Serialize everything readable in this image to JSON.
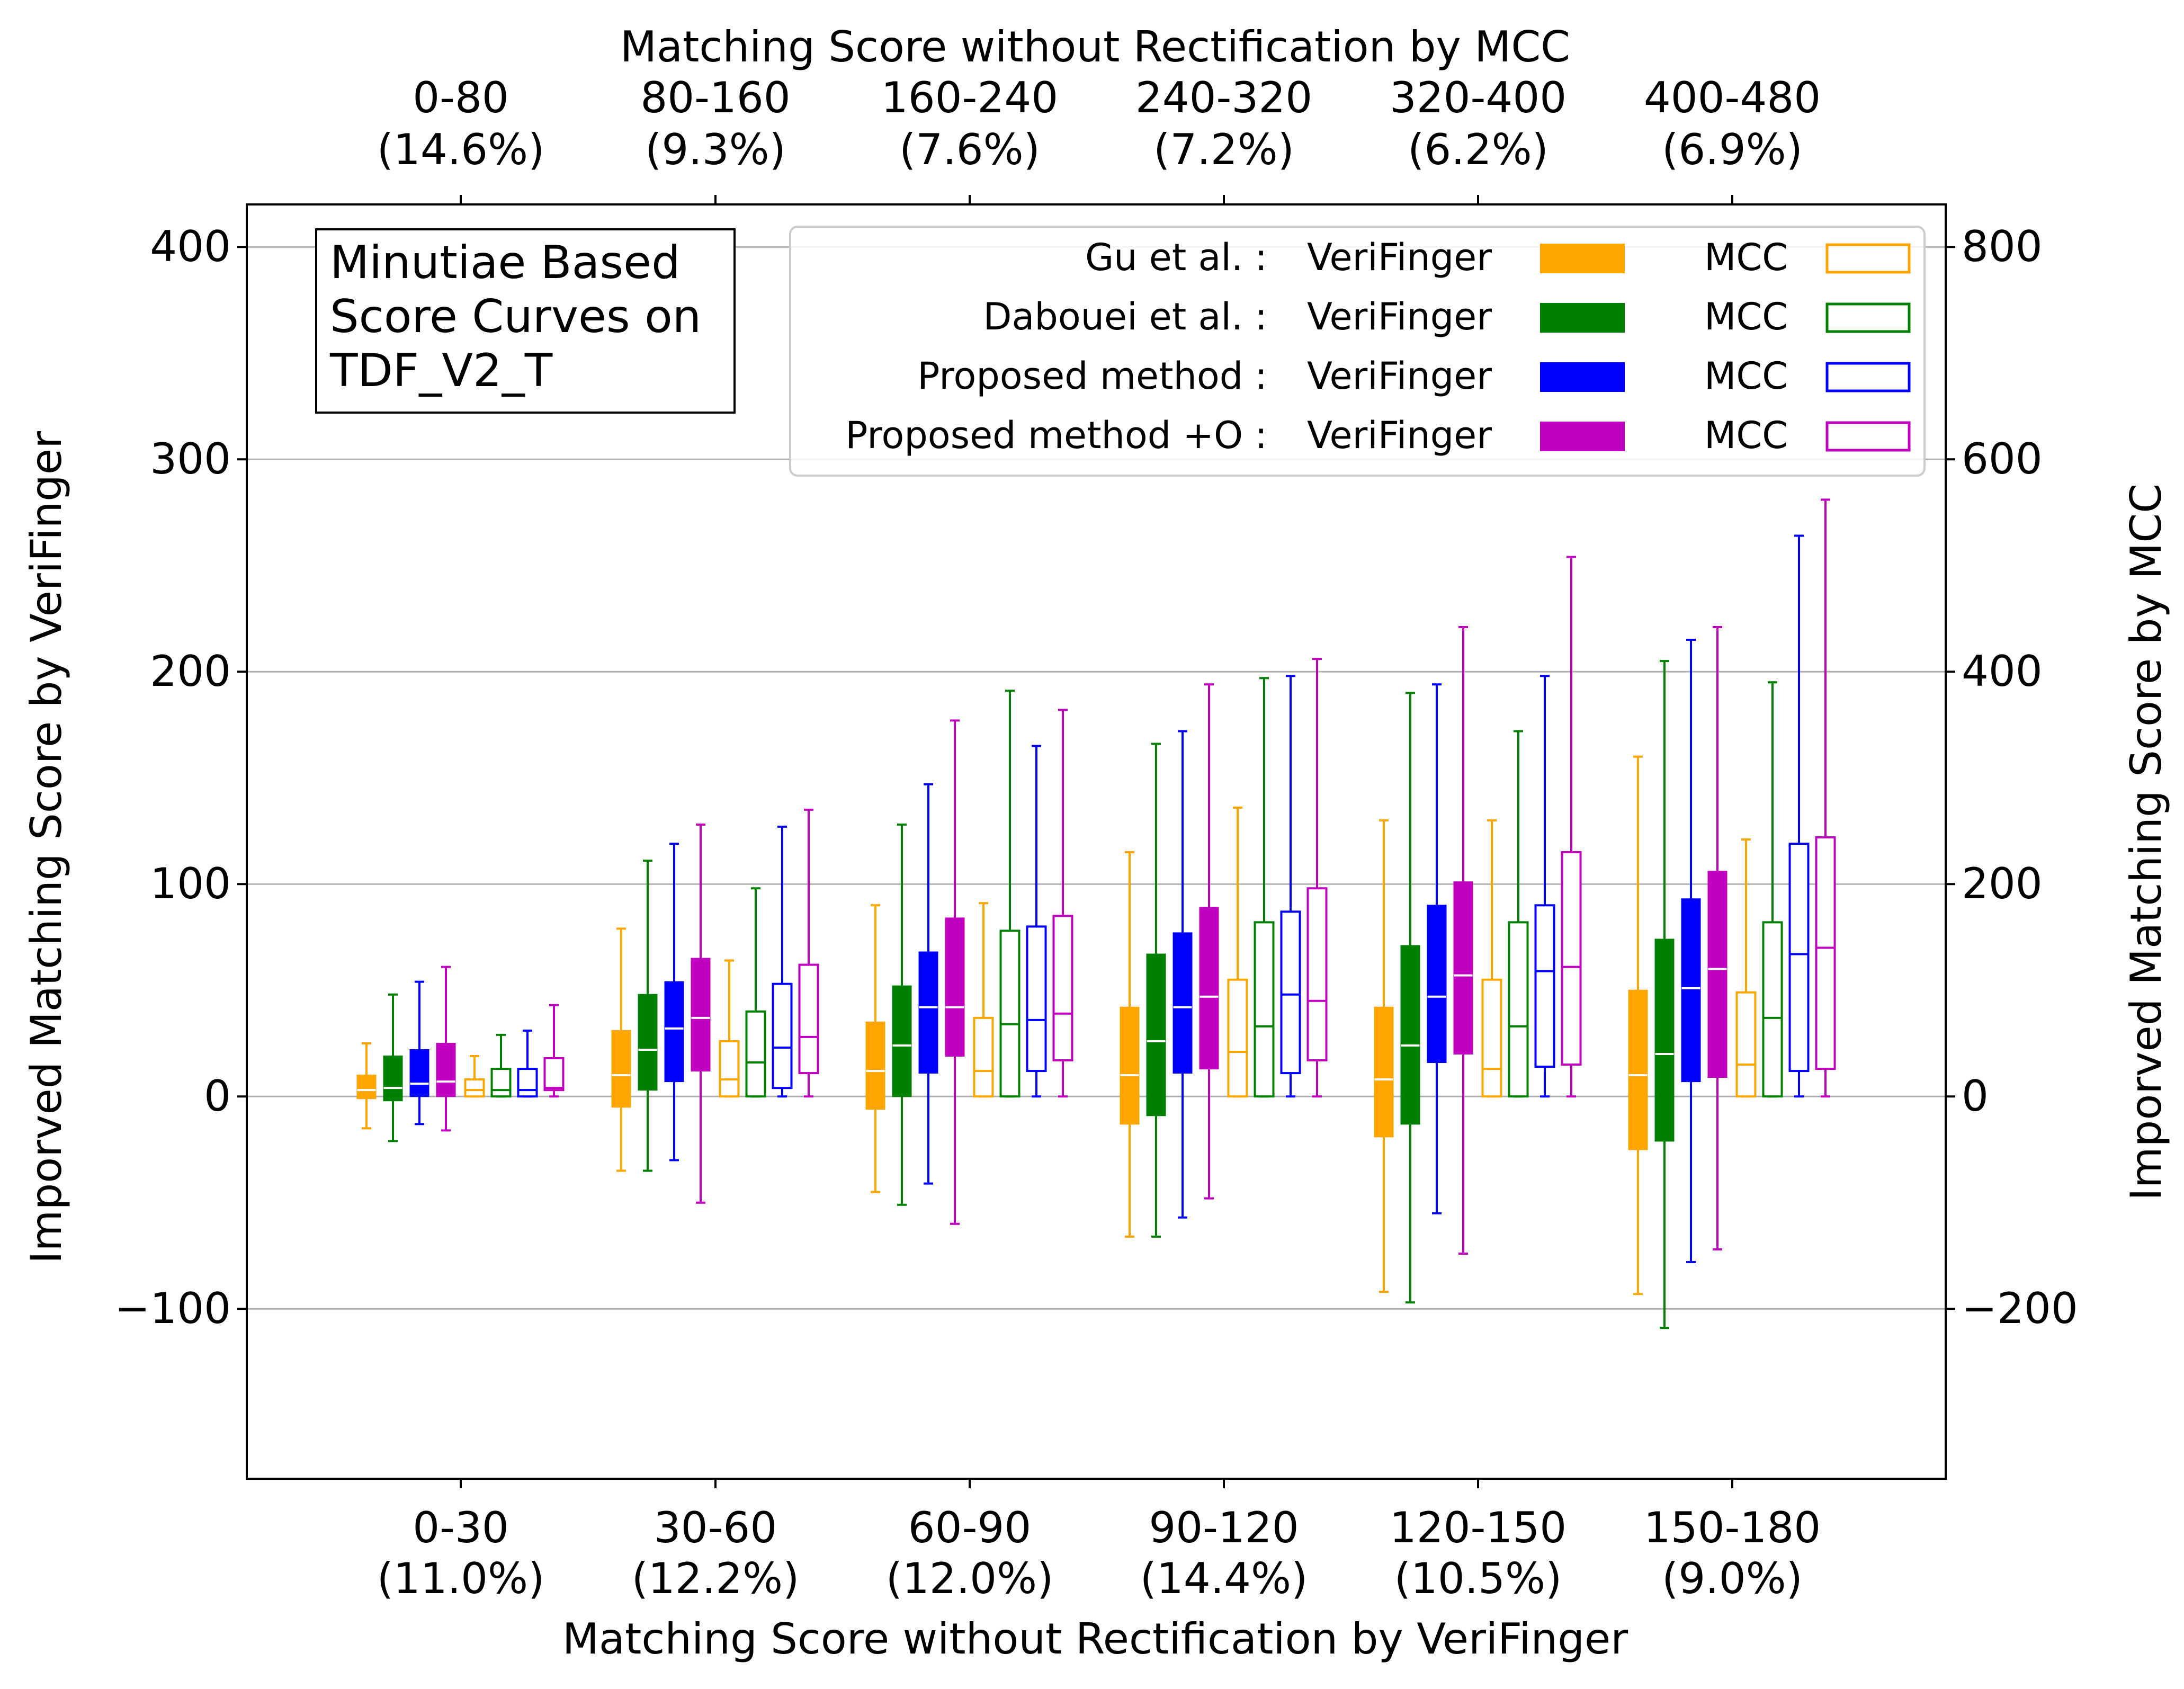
{
  "chart_data": {
    "type": "box",
    "bottom_xlabel": "Matching Score without Rectification by VeriFinger",
    "top_xlabel": "Matching Score without Rectification by MCC",
    "left_ylabel": "Imporved Matching Score by VeriFinger",
    "right_ylabel": "Imporved Matching Score by MCC",
    "left_ylim": [
      -180,
      420
    ],
    "right_ylim": [
      -360,
      840
    ],
    "left_ticks": [
      -100,
      0,
      100,
      200,
      300,
      400
    ],
    "right_ticks": [
      -200,
      0,
      200,
      400,
      600,
      800
    ],
    "left_tick_labels": [
      "−100",
      "0",
      "100",
      "200",
      "300",
      "400"
    ],
    "right_tick_labels": [
      "−200",
      "0",
      "200",
      "400",
      "600",
      "800"
    ],
    "bottom_categories": [
      {
        "range": "0-30",
        "pct": "(11.0%)"
      },
      {
        "range": "30-60",
        "pct": "(12.2%)"
      },
      {
        "range": "60-90",
        "pct": "(12.0%)"
      },
      {
        "range": "90-120",
        "pct": "(14.4%)"
      },
      {
        "range": "120-150",
        "pct": "(10.5%)"
      },
      {
        "range": "150-180",
        "pct": "(9.0%)"
      }
    ],
    "top_categories": [
      {
        "range": "0-80",
        "pct": "(14.6%)"
      },
      {
        "range": "80-160",
        "pct": "(9.3%)"
      },
      {
        "range": "160-240",
        "pct": "(7.6%)"
      },
      {
        "range": "240-320",
        "pct": "(7.2%)"
      },
      {
        "range": "320-400",
        "pct": "(6.2%)"
      },
      {
        "range": "400-480",
        "pct": "(6.9%)"
      }
    ],
    "annotation": [
      "Minutiae Based",
      "Score Curves on",
      "TDF_V2_T"
    ],
    "grid": "horizontal",
    "legend": {
      "placement": "top-right",
      "left_label": "VeriFinger",
      "right_label": "MCC",
      "entries": [
        {
          "name": "Gu et al. :",
          "color": "#FFA500"
        },
        {
          "name": "Dabouei et al. :",
          "color": "#008000"
        },
        {
          "name": "Proposed method :",
          "color": "#0000FF"
        },
        {
          "name": "Proposed method +O :",
          "color": "#BF00BF"
        }
      ]
    },
    "series": [
      {
        "method": "Gu et al.",
        "matcher": "VeriFinger",
        "axis": "left",
        "filled": true,
        "color": "#FFA500",
        "boxes": [
          {
            "lo": -15,
            "q1": -1,
            "med": 3,
            "q3": 10,
            "hi": 25
          },
          {
            "lo": -35,
            "q1": -5,
            "med": 10,
            "q3": 31,
            "hi": 79
          },
          {
            "lo": -45,
            "q1": -6,
            "med": 12,
            "q3": 35,
            "hi": 90
          },
          {
            "lo": -66,
            "q1": -13,
            "med": 10,
            "q3": 42,
            "hi": 115
          },
          {
            "lo": -92,
            "q1": -19,
            "med": 8,
            "q3": 42,
            "hi": 130
          },
          {
            "lo": -93,
            "q1": -25,
            "med": 10,
            "q3": 50,
            "hi": 160
          }
        ]
      },
      {
        "method": "Dabouei et al.",
        "matcher": "VeriFinger",
        "axis": "left",
        "filled": true,
        "color": "#008000",
        "boxes": [
          {
            "lo": -21,
            "q1": -2,
            "med": 4,
            "q3": 19,
            "hi": 48
          },
          {
            "lo": -35,
            "q1": 3,
            "med": 22,
            "q3": 48,
            "hi": 111
          },
          {
            "lo": -51,
            "q1": 0,
            "med": 24,
            "q3": 52,
            "hi": 128
          },
          {
            "lo": -66,
            "q1": -9,
            "med": 26,
            "q3": 67,
            "hi": 166
          },
          {
            "lo": -97,
            "q1": -13,
            "med": 24,
            "q3": 71,
            "hi": 190
          },
          {
            "lo": -109,
            "q1": -21,
            "med": 20,
            "q3": 74,
            "hi": 205
          }
        ]
      },
      {
        "method": "Proposed method",
        "matcher": "VeriFinger",
        "axis": "left",
        "filled": true,
        "color": "#0000FF",
        "boxes": [
          {
            "lo": -13,
            "q1": 0,
            "med": 6,
            "q3": 22,
            "hi": 54
          },
          {
            "lo": -30,
            "q1": 7,
            "med": 32,
            "q3": 54,
            "hi": 119
          },
          {
            "lo": -41,
            "q1": 11,
            "med": 42,
            "q3": 68,
            "hi": 147
          },
          {
            "lo": -57,
            "q1": 11,
            "med": 42,
            "q3": 77,
            "hi": 172
          },
          {
            "lo": -55,
            "q1": 16,
            "med": 47,
            "q3": 90,
            "hi": 194
          },
          {
            "lo": -78,
            "q1": 7,
            "med": 51,
            "q3": 93,
            "hi": 215
          }
        ]
      },
      {
        "method": "Proposed method +O",
        "matcher": "VeriFinger",
        "axis": "left",
        "filled": true,
        "color": "#BF00BF",
        "boxes": [
          {
            "lo": -16,
            "q1": 0,
            "med": 7,
            "q3": 25,
            "hi": 61
          },
          {
            "lo": -50,
            "q1": 12,
            "med": 37,
            "q3": 65,
            "hi": 128
          },
          {
            "lo": -60,
            "q1": 19,
            "med": 42,
            "q3": 84,
            "hi": 177
          },
          {
            "lo": -48,
            "q1": 13,
            "med": 47,
            "q3": 89,
            "hi": 194
          },
          {
            "lo": -74,
            "q1": 20,
            "med": 57,
            "q3": 101,
            "hi": 221
          },
          {
            "lo": -72,
            "q1": 9,
            "med": 60,
            "q3": 106,
            "hi": 221
          }
        ]
      },
      {
        "method": "Gu et al.",
        "matcher": "MCC",
        "axis": "right",
        "filled": false,
        "color": "#FFA500",
        "boxes": [
          {
            "lo": 0,
            "q1": 0,
            "med": 6,
            "q3": 16,
            "hi": 38
          },
          {
            "lo": 0,
            "q1": 0,
            "med": 16,
            "q3": 52,
            "hi": 128
          },
          {
            "lo": 0,
            "q1": 0,
            "med": 24,
            "q3": 74,
            "hi": 182
          },
          {
            "lo": 0,
            "q1": 0,
            "med": 42,
            "q3": 110,
            "hi": 272
          },
          {
            "lo": 0,
            "q1": 0,
            "med": 26,
            "q3": 110,
            "hi": 260
          },
          {
            "lo": 0,
            "q1": 0,
            "med": 30,
            "q3": 98,
            "hi": 242
          }
        ]
      },
      {
        "method": "Dabouei et al.",
        "matcher": "MCC",
        "axis": "right",
        "filled": false,
        "color": "#008000",
        "boxes": [
          {
            "lo": 0,
            "q1": 0,
            "med": 6,
            "q3": 26,
            "hi": 58
          },
          {
            "lo": 0,
            "q1": 0,
            "med": 32,
            "q3": 80,
            "hi": 196
          },
          {
            "lo": 0,
            "q1": 0,
            "med": 68,
            "q3": 156,
            "hi": 382
          },
          {
            "lo": 0,
            "q1": 0,
            "med": 66,
            "q3": 164,
            "hi": 394
          },
          {
            "lo": 0,
            "q1": 0,
            "med": 66,
            "q3": 164,
            "hi": 344
          },
          {
            "lo": 0,
            "q1": 0,
            "med": 74,
            "q3": 164,
            "hi": 390
          }
        ]
      },
      {
        "method": "Proposed method",
        "matcher": "MCC",
        "axis": "right",
        "filled": false,
        "color": "#0000FF",
        "boxes": [
          {
            "lo": 0,
            "q1": 0,
            "med": 6,
            "q3": 26,
            "hi": 62
          },
          {
            "lo": 0,
            "q1": 8,
            "med": 46,
            "q3": 106,
            "hi": 254
          },
          {
            "lo": 0,
            "q1": 24,
            "med": 72,
            "q3": 160,
            "hi": 330
          },
          {
            "lo": 0,
            "q1": 22,
            "med": 96,
            "q3": 174,
            "hi": 396
          },
          {
            "lo": 0,
            "q1": 28,
            "med": 118,
            "q3": 180,
            "hi": 396
          },
          {
            "lo": 0,
            "q1": 24,
            "med": 134,
            "q3": 238,
            "hi": 528
          }
        ]
      },
      {
        "method": "Proposed method +O",
        "matcher": "MCC",
        "axis": "right",
        "filled": false,
        "color": "#BF00BF",
        "boxes": [
          {
            "lo": 0,
            "q1": 6,
            "med": 8,
            "q3": 36,
            "hi": 86
          },
          {
            "lo": 0,
            "q1": 22,
            "med": 56,
            "q3": 124,
            "hi": 270
          },
          {
            "lo": 0,
            "q1": 34,
            "med": 78,
            "q3": 170,
            "hi": 364
          },
          {
            "lo": 0,
            "q1": 34,
            "med": 90,
            "q3": 196,
            "hi": 412
          },
          {
            "lo": 0,
            "q1": 30,
            "med": 122,
            "q3": 230,
            "hi": 508
          },
          {
            "lo": 0,
            "q1": 26,
            "med": 140,
            "q3": 244,
            "hi": 562
          }
        ]
      }
    ]
  }
}
